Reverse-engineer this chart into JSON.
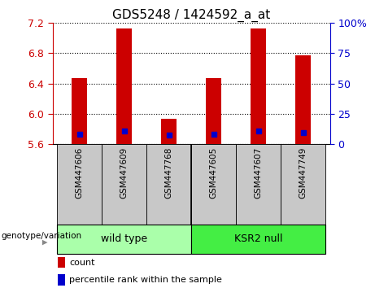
{
  "title": "GDS5248 / 1424592_a_at",
  "samples": [
    "GSM447606",
    "GSM447609",
    "GSM447768",
    "GSM447605",
    "GSM447607",
    "GSM447749"
  ],
  "bar_tops": [
    6.47,
    7.13,
    5.93,
    6.47,
    7.13,
    6.77
  ],
  "bar_bottom": 5.6,
  "blue_vals": [
    5.73,
    5.77,
    5.72,
    5.73,
    5.77,
    5.75
  ],
  "ylim_left": [
    5.6,
    7.2
  ],
  "ylim_right": [
    0,
    100
  ],
  "yticks_left": [
    5.6,
    6.0,
    6.4,
    6.8,
    7.2
  ],
  "yticks_right": [
    0,
    25,
    50,
    75,
    100
  ],
  "ytick_labels_right": [
    "0",
    "25",
    "50",
    "75",
    "100%"
  ],
  "bar_color": "#cc0000",
  "blue_color": "#0000cc",
  "groups": [
    {
      "label": "wild type",
      "indices": [
        0,
        1,
        2
      ],
      "color": "#aaffaa"
    },
    {
      "label": "KSR2 null",
      "indices": [
        3,
        4,
        5
      ],
      "color": "#44ee44"
    }
  ],
  "group_label": "genotype/variation",
  "legend_count_color": "#cc0000",
  "legend_pct_color": "#0000cc",
  "left_axis_color": "#cc0000",
  "right_axis_color": "#0000cc",
  "bar_width": 0.35,
  "blue_size": 5,
  "xticklabel_bg": "#c8c8c8",
  "xticklabel_fontsize": 7.5,
  "group_fontsize": 9,
  "title_fontsize": 11
}
